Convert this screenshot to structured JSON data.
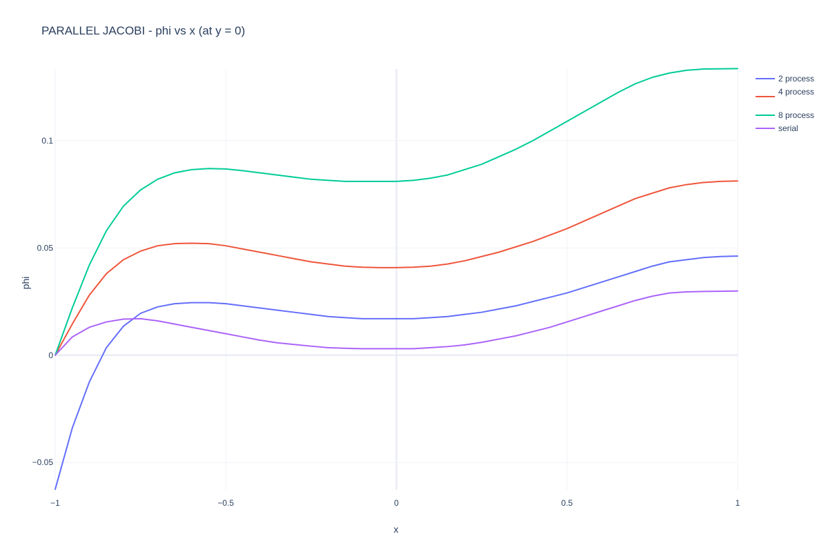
{
  "chart_data": {
    "type": "line",
    "title": "PARALLEL JACOBI - phi vs x (at y = 0)",
    "xlabel": "x",
    "ylabel": "phi",
    "xlim": [
      -1,
      1
    ],
    "ylim": [
      -0.0628,
      0.1334
    ],
    "x_ticks": [
      -1,
      -0.5,
      0,
      0.5,
      1
    ],
    "x_tick_labels": [
      "−1",
      "−0.5",
      "0",
      "0.5",
      "1"
    ],
    "y_ticks": [
      -0.05,
      0,
      0.05,
      0.1
    ],
    "y_tick_labels": [
      "−0.05",
      "0",
      "0.05",
      "0.1"
    ],
    "grid": true,
    "legend_position": "top-right",
    "x": [
      -1,
      -0.95,
      -0.9,
      -0.85,
      -0.8,
      -0.75,
      -0.7,
      -0.65,
      -0.6,
      -0.55,
      -0.5,
      -0.45,
      -0.4,
      -0.35,
      -0.3,
      -0.25,
      -0.2,
      -0.15,
      -0.1,
      -0.05,
      0,
      0.05,
      0.1,
      0.15,
      0.2,
      0.25,
      0.3,
      0.35,
      0.4,
      0.45,
      0.5,
      0.55,
      0.6,
      0.65,
      0.7,
      0.75,
      0.8,
      0.85,
      0.9,
      0.95,
      1
    ],
    "series": [
      {
        "name": "2 process",
        "color": "#636efa",
        "values": [
          -0.0625,
          -0.034,
          -0.0125,
          0.0035,
          0.0135,
          0.0195,
          0.0225,
          0.024,
          0.0245,
          0.0245,
          0.024,
          0.023,
          0.022,
          0.021,
          0.02,
          0.019,
          0.018,
          0.0175,
          0.017,
          0.017,
          0.017,
          0.017,
          0.0175,
          0.018,
          0.019,
          0.02,
          0.0215,
          0.023,
          0.025,
          0.027,
          0.029,
          0.0315,
          0.034,
          0.0365,
          0.039,
          0.0415,
          0.0435,
          0.0445,
          0.0455,
          0.046,
          0.0462
        ]
      },
      {
        "name": "4 process",
        "color": "#ef553b",
        "values": [
          0.0,
          0.0145,
          0.028,
          0.038,
          0.0445,
          0.0485,
          0.051,
          0.052,
          0.0522,
          0.052,
          0.051,
          0.0495,
          0.048,
          0.0465,
          0.045,
          0.0435,
          0.0425,
          0.0415,
          0.041,
          0.0408,
          0.0408,
          0.041,
          0.0415,
          0.0425,
          0.044,
          0.046,
          0.048,
          0.0505,
          0.053,
          0.056,
          0.059,
          0.0625,
          0.066,
          0.0695,
          0.073,
          0.0755,
          0.078,
          0.0795,
          0.0805,
          0.081,
          0.0812
        ]
      },
      {
        "name": "8 process",
        "color": "#00cc96",
        "values": [
          0.0,
          0.022,
          0.042,
          0.058,
          0.0695,
          0.077,
          0.082,
          0.085,
          0.0865,
          0.087,
          0.0868,
          0.086,
          0.085,
          0.084,
          0.083,
          0.082,
          0.0815,
          0.081,
          0.081,
          0.081,
          0.081,
          0.0815,
          0.0825,
          0.084,
          0.0865,
          0.089,
          0.0925,
          0.096,
          0.1,
          0.1045,
          0.109,
          0.1135,
          0.118,
          0.1225,
          0.1265,
          0.1295,
          0.1315,
          0.1328,
          0.1334,
          0.1335,
          0.1336
        ]
      },
      {
        "name": "serial",
        "color": "#ab63fa",
        "values": [
          0.0,
          0.0085,
          0.013,
          0.0155,
          0.0168,
          0.017,
          0.016,
          0.0145,
          0.013,
          0.0115,
          0.01,
          0.0085,
          0.007,
          0.0058,
          0.005,
          0.0042,
          0.0035,
          0.0032,
          0.003,
          0.003,
          0.003,
          0.003,
          0.0035,
          0.004,
          0.0048,
          0.006,
          0.0075,
          0.009,
          0.011,
          0.013,
          0.0155,
          0.018,
          0.0205,
          0.023,
          0.0255,
          0.0275,
          0.029,
          0.0295,
          0.0297,
          0.0298,
          0.0299
        ]
      }
    ]
  }
}
